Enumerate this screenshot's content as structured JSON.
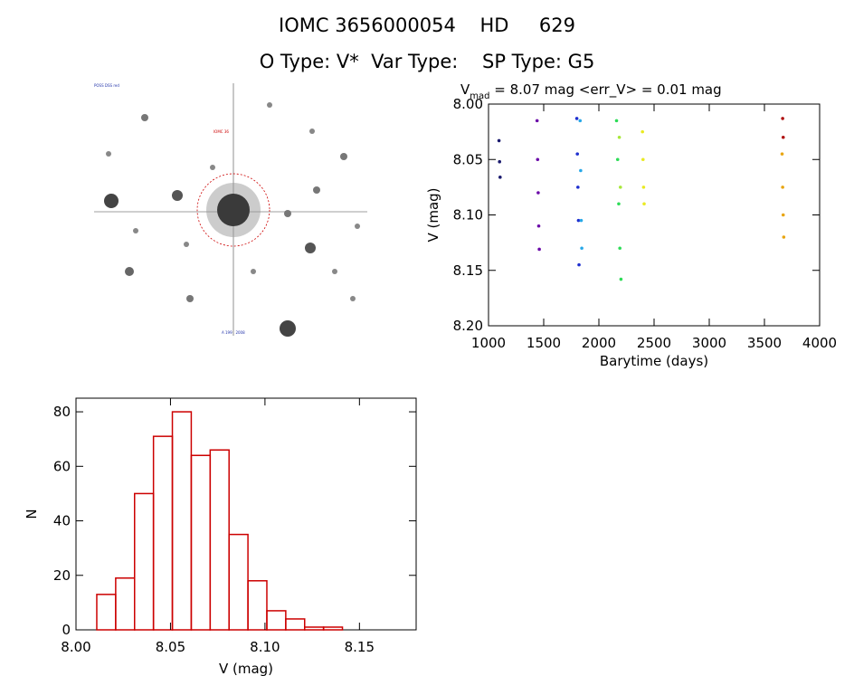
{
  "header": {
    "line1": "IOMC 3656000054    HD     629",
    "line2": "O Type: V*  Var Type:    SP Type: G5"
  },
  "sky_image": {
    "markers": {
      "top_left": "POSS DSS red",
      "center_label": "IOMC 36",
      "bottom_center": "A 1997 2008"
    }
  },
  "chart_data": [
    {
      "type": "scatter",
      "title_sub": "mad",
      "title_prefix": "V",
      "title_rest": " = 8.07 mag <err_V> = 0.01 mag",
      "xlabel": "Barytime (days)",
      "ylabel": "V (mag)",
      "xlim": [
        1000,
        4000
      ],
      "ylim": [
        8.2,
        8.0
      ],
      "xticks": [
        1000,
        1500,
        2000,
        2500,
        3000,
        3500,
        4000
      ],
      "yticks": [
        8.0,
        8.05,
        8.1,
        8.15,
        8.2
      ],
      "ytick_labels": [
        "8.00",
        "8.05",
        "8.10",
        "8.15",
        "8.20"
      ],
      "series": [
        {
          "color": "#1a1a6e",
          "x": [
            1095,
            1100,
            1105
          ],
          "y": [
            8.033,
            8.052,
            8.066
          ]
        },
        {
          "color": "#6b0aa8",
          "x": [
            1440,
            1445,
            1450,
            1455,
            1460
          ],
          "y": [
            8.015,
            8.05,
            8.08,
            8.11,
            8.131
          ]
        },
        {
          "color": "#1e2fcf",
          "x": [
            1800,
            1805,
            1810,
            1815,
            1820
          ],
          "y": [
            8.013,
            8.045,
            8.075,
            8.105,
            8.145
          ]
        },
        {
          "color": "#27a8e8",
          "x": [
            1830,
            1835,
            1840,
            1845
          ],
          "y": [
            8.015,
            8.06,
            8.105,
            8.13
          ]
        },
        {
          "color": "#2ddc57",
          "x": [
            2160,
            2170,
            2180,
            2190,
            2200
          ],
          "y": [
            8.015,
            8.05,
            8.09,
            8.13,
            8.158
          ]
        },
        {
          "color": "#a8e83a",
          "x": [
            2185,
            2195
          ],
          "y": [
            8.03,
            8.075
          ]
        },
        {
          "color": "#eaea22",
          "x": [
            2395,
            2400,
            2405,
            2410
          ],
          "y": [
            8.025,
            8.05,
            8.075,
            8.09
          ]
        },
        {
          "color": "#e8a512",
          "x": [
            3660,
            3665,
            3670,
            3675
          ],
          "y": [
            8.045,
            8.075,
            8.1,
            8.12
          ]
        },
        {
          "color": "#b01414",
          "x": [
            3665,
            3670
          ],
          "y": [
            8.013,
            8.03
          ]
        }
      ]
    },
    {
      "type": "bar",
      "xlabel": "V (mag)",
      "ylabel": "N",
      "xlim": [
        8.0,
        8.18
      ],
      "ylim": [
        0,
        85
      ],
      "xticks": [
        8.0,
        8.05,
        8.1,
        8.15
      ],
      "xtick_labels": [
        "8.00",
        "8.05",
        "8.10",
        "8.15"
      ],
      "yticks": [
        0,
        20,
        40,
        60,
        80
      ],
      "bin_width": 0.01,
      "bin_starts": [
        8.011,
        8.021,
        8.031,
        8.041,
        8.051,
        8.061,
        8.071,
        8.081,
        8.091,
        8.101,
        8.111,
        8.121,
        8.131,
        8.141,
        8.151,
        8.161
      ],
      "values": [
        13,
        19,
        50,
        71,
        80,
        64,
        66,
        35,
        18,
        7,
        4,
        1,
        1,
        0,
        0,
        0
      ],
      "bar_color": "#cc0000"
    }
  ]
}
